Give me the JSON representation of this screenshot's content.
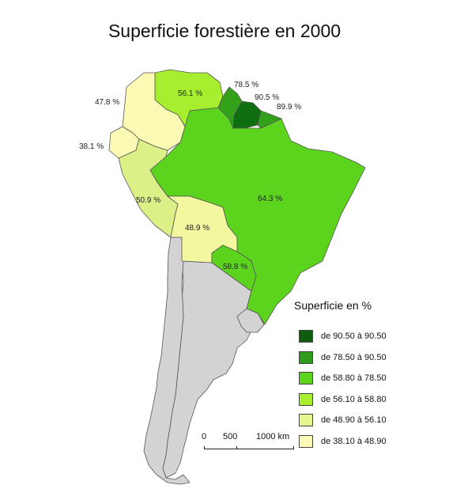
{
  "title": "Superficie forestière en 2000",
  "regions": [
    {
      "id": "colombia",
      "value": "56.1 %",
      "color": "#a7ef2e"
    },
    {
      "id": "venezuela",
      "value": "56.1 %",
      "color": "#a7ef2e"
    },
    {
      "id": "guyana",
      "value": "78.5 %",
      "color": "#34a11a"
    },
    {
      "id": "suriname",
      "value": "90.5 %",
      "color": "#0f6e0f"
    },
    {
      "id": "guiana",
      "value": "89.9 %",
      "color": "#34a11a"
    },
    {
      "id": "ecuador",
      "value": "38.1 %",
      "color": "#fafab4"
    },
    {
      "id": "peru",
      "value": "50.9 %",
      "color": "#dcf088"
    },
    {
      "id": "brazil",
      "value": "64.3 %",
      "color": "#5cd41e"
    },
    {
      "id": "bolivia",
      "value": "48.9 %",
      "color": "#f2f7a0"
    },
    {
      "id": "paraguay",
      "value": "58.8 %",
      "color": "#5cd41e"
    },
    {
      "id": "colombia-north",
      "value": "47.8 %",
      "color": "#fafab4"
    },
    {
      "id": "chile",
      "value": "",
      "color": "#d3d3d3"
    },
    {
      "id": "argentina",
      "value": "",
      "color": "#d3d3d3"
    },
    {
      "id": "uruguay",
      "value": "",
      "color": "#d3d3d3"
    }
  ],
  "labels": [
    {
      "text": "78.5 %"
    },
    {
      "text": "90.5 %"
    },
    {
      "text": "89.9 %"
    },
    {
      "text": "56.1 %"
    },
    {
      "text": "47.8 %"
    },
    {
      "text": "38.1 %"
    },
    {
      "text": "64.3 %"
    },
    {
      "text": "50.9 %"
    },
    {
      "text": "48.9 %"
    },
    {
      "text": "58.8 %"
    }
  ],
  "legend": {
    "title": "Superficie en %",
    "items": [
      {
        "label": "de 90.50 à 90.50",
        "color": "#0f5e0f"
      },
      {
        "label": "de 78.50 à 90.50",
        "color": "#2e9c18"
      },
      {
        "label": "de 58.80 à 78.50",
        "color": "#5cd41e"
      },
      {
        "label": "de 56.10 à 58.80",
        "color": "#a7ef2e"
      },
      {
        "label": "de 48.90 à 56.10",
        "color": "#e6f58e"
      },
      {
        "label": "de 38.10 à 48.90",
        "color": "#fafab4"
      }
    ]
  },
  "scale": {
    "ticks": [
      "0",
      "500",
      "1000 km"
    ]
  }
}
